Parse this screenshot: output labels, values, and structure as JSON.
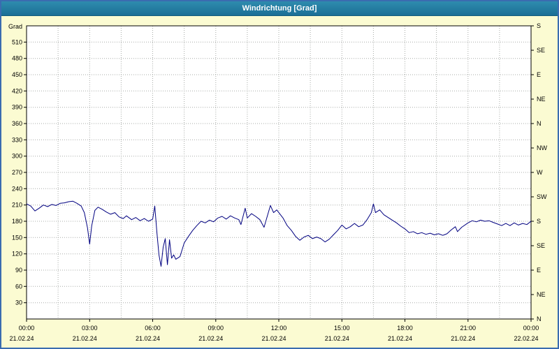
{
  "window": {
    "title": "Windrichtung [Grad]"
  },
  "colors": {
    "background": "#fbfbd2",
    "titlebar": "#1b6f96",
    "border": "#3a6cb0",
    "line": "#000080",
    "grid": "#a8aca8",
    "plot_bg": "#ffffff"
  },
  "chart_data": {
    "type": "line",
    "title": "Windrichtung [Grad]",
    "ylabel_left": "Grad",
    "ylim": [
      0,
      540
    ],
    "ytick_step": 30,
    "xlim": [
      0,
      24
    ],
    "grid_x_step": 1.5,
    "grid": "dotted",
    "line_color": "#000080",
    "right_axis": {
      "step": 45,
      "labels": [
        "N",
        "NE",
        "E",
        "SE",
        "S",
        "SW",
        "W",
        "NW",
        "N",
        "NE",
        "E",
        "SE",
        "S"
      ]
    },
    "xticks": [
      {
        "h": 0,
        "time": "00:00",
        "date": "21.02.24"
      },
      {
        "h": 3,
        "time": "03:00",
        "date": "21.02.24"
      },
      {
        "h": 6,
        "time": "06:00",
        "date": "21.02.24"
      },
      {
        "h": 9,
        "time": "09:00",
        "date": "21.02.24"
      },
      {
        "h": 12,
        "time": "12:00",
        "date": "21.02.24"
      },
      {
        "h": 15,
        "time": "15:00",
        "date": "21.02.24"
      },
      {
        "h": 18,
        "time": "18:00",
        "date": "21.02.24"
      },
      {
        "h": 21,
        "time": "21:00",
        "date": "21.02.24"
      },
      {
        "h": 24,
        "time": "00:00",
        "date": "22.02.24"
      }
    ],
    "points": [
      [
        0,
        212
      ],
      [
        0.2,
        208
      ],
      [
        0.4,
        199
      ],
      [
        0.6,
        204
      ],
      [
        0.8,
        210
      ],
      [
        1,
        207
      ],
      [
        1.2,
        211
      ],
      [
        1.4,
        209
      ],
      [
        1.6,
        213
      ],
      [
        1.8,
        214
      ],
      [
        2,
        216
      ],
      [
        2.2,
        217
      ],
      [
        2.4,
        213
      ],
      [
        2.6,
        208
      ],
      [
        2.75,
        196
      ],
      [
        2.9,
        168
      ],
      [
        3,
        138
      ],
      [
        3.1,
        172
      ],
      [
        3.25,
        200
      ],
      [
        3.4,
        206
      ],
      [
        3.6,
        202
      ],
      [
        3.8,
        197
      ],
      [
        4,
        193
      ],
      [
        4.2,
        196
      ],
      [
        4.4,
        188
      ],
      [
        4.6,
        185
      ],
      [
        4.75,
        190
      ],
      [
        5,
        183
      ],
      [
        5.2,
        187
      ],
      [
        5.4,
        181
      ],
      [
        5.6,
        185
      ],
      [
        5.8,
        180
      ],
      [
        6,
        184
      ],
      [
        6.1,
        208
      ],
      [
        6.2,
        160
      ],
      [
        6.3,
        118
      ],
      [
        6.4,
        97
      ],
      [
        6.5,
        132
      ],
      [
        6.6,
        148
      ],
      [
        6.7,
        100
      ],
      [
        6.8,
        146
      ],
      [
        6.9,
        112
      ],
      [
        7,
        118
      ],
      [
        7.1,
        110
      ],
      [
        7.3,
        115
      ],
      [
        7.5,
        140
      ],
      [
        7.7,
        152
      ],
      [
        7.9,
        163
      ],
      [
        8.1,
        172
      ],
      [
        8.3,
        180
      ],
      [
        8.5,
        177
      ],
      [
        8.7,
        182
      ],
      [
        8.9,
        179
      ],
      [
        9.1,
        186
      ],
      [
        9.3,
        189
      ],
      [
        9.5,
        184
      ],
      [
        9.7,
        190
      ],
      [
        9.9,
        186
      ],
      [
        10.1,
        183
      ],
      [
        10.2,
        174
      ],
      [
        10.4,
        204
      ],
      [
        10.5,
        186
      ],
      [
        10.7,
        194
      ],
      [
        10.9,
        189
      ],
      [
        11.1,
        183
      ],
      [
        11.3,
        169
      ],
      [
        11.5,
        196
      ],
      [
        11.6,
        209
      ],
      [
        11.75,
        196
      ],
      [
        11.9,
        201
      ],
      [
        12,
        196
      ],
      [
        12.2,
        186
      ],
      [
        12.4,
        172
      ],
      [
        12.6,
        163
      ],
      [
        12.8,
        152
      ],
      [
        13,
        145
      ],
      [
        13.2,
        151
      ],
      [
        13.4,
        154
      ],
      [
        13.6,
        148
      ],
      [
        13.8,
        151
      ],
      [
        14,
        148
      ],
      [
        14.2,
        142
      ],
      [
        14.4,
        147
      ],
      [
        14.6,
        155
      ],
      [
        14.8,
        163
      ],
      [
        15,
        173
      ],
      [
        15.2,
        166
      ],
      [
        15.4,
        170
      ],
      [
        15.6,
        176
      ],
      [
        15.8,
        170
      ],
      [
        16,
        173
      ],
      [
        16.2,
        183
      ],
      [
        16.4,
        196
      ],
      [
        16.5,
        212
      ],
      [
        16.6,
        196
      ],
      [
        16.8,
        201
      ],
      [
        17,
        192
      ],
      [
        17.2,
        187
      ],
      [
        17.4,
        182
      ],
      [
        17.6,
        177
      ],
      [
        17.8,
        171
      ],
      [
        18,
        166
      ],
      [
        18.2,
        159
      ],
      [
        18.4,
        161
      ],
      [
        18.6,
        157
      ],
      [
        18.8,
        159
      ],
      [
        19,
        156
      ],
      [
        19.2,
        158
      ],
      [
        19.4,
        155
      ],
      [
        19.6,
        157
      ],
      [
        19.8,
        154
      ],
      [
        20,
        157
      ],
      [
        20.2,
        164
      ],
      [
        20.4,
        170
      ],
      [
        20.5,
        161
      ],
      [
        20.7,
        169
      ],
      [
        21,
        177
      ],
      [
        21.2,
        181
      ],
      [
        21.4,
        179
      ],
      [
        21.6,
        182
      ],
      [
        21.8,
        180
      ],
      [
        22,
        181
      ],
      [
        22.2,
        178
      ],
      [
        22.4,
        175
      ],
      [
        22.6,
        172
      ],
      [
        22.8,
        176
      ],
      [
        23,
        172
      ],
      [
        23.2,
        177
      ],
      [
        23.4,
        173
      ],
      [
        23.6,
        176
      ],
      [
        23.8,
        174
      ],
      [
        24,
        180
      ]
    ]
  }
}
